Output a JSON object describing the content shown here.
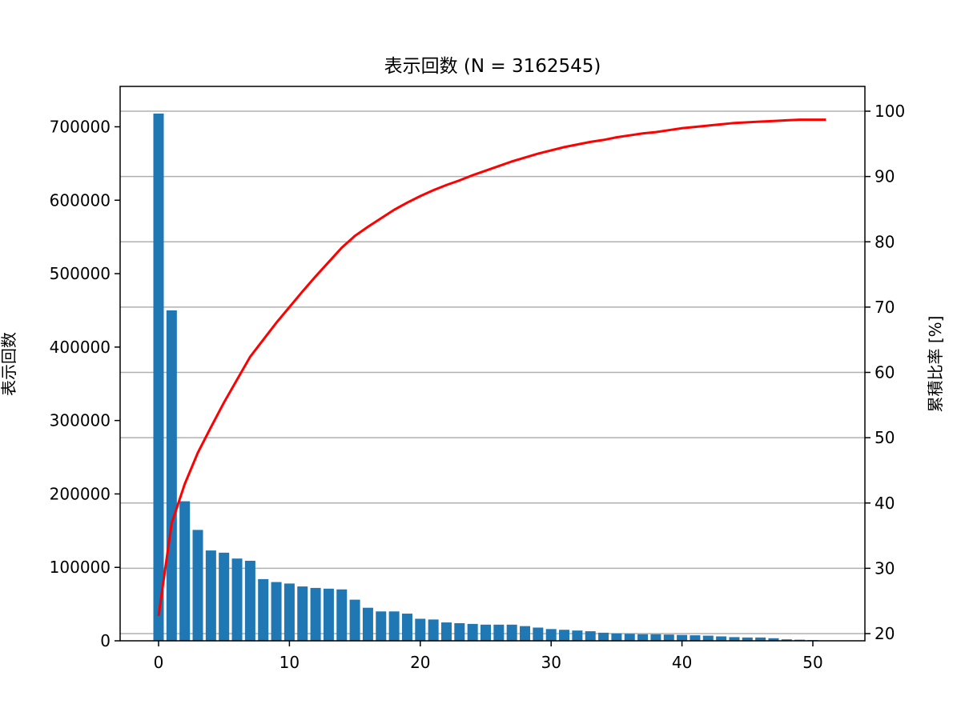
{
  "chart_data": {
    "type": "bar",
    "title": "表示回数 (N = 3162545)",
    "xlabel": "",
    "ylabel": "表示回数",
    "y2label": "累積比率 [%]",
    "xlim": [
      -3,
      54
    ],
    "ylim": [
      0,
      755000
    ],
    "y2lim": [
      18.6,
      103.9
    ],
    "x_ticks": [
      0,
      10,
      20,
      30,
      40,
      50
    ],
    "y_ticks": [
      0,
      100000,
      200000,
      300000,
      400000,
      500000,
      600000,
      700000
    ],
    "y2_ticks": [
      20,
      30,
      40,
      50,
      60,
      70,
      80,
      90,
      100
    ],
    "grid": "horizontal (right-axis ticks)",
    "bar_color": "#1f77b4",
    "line_color": "#ff0000",
    "categories": [
      0,
      1,
      2,
      3,
      4,
      5,
      6,
      7,
      8,
      9,
      10,
      11,
      12,
      13,
      14,
      15,
      16,
      17,
      18,
      19,
      20,
      21,
      22,
      23,
      24,
      25,
      26,
      27,
      28,
      29,
      30,
      31,
      32,
      33,
      34,
      35,
      36,
      37,
      38,
      39,
      40,
      41,
      42,
      43,
      44,
      45,
      46,
      47,
      48,
      49,
      50,
      51
    ],
    "series": [
      {
        "name": "表示回数",
        "axis": "left",
        "type": "bar",
        "values": [
          718000,
          450000,
          190000,
          151000,
          123000,
          120000,
          112000,
          109000,
          84000,
          80000,
          78000,
          74000,
          72000,
          71000,
          70000,
          56000,
          45000,
          40000,
          40000,
          37000,
          30000,
          29000,
          25000,
          24000,
          23000,
          22000,
          22000,
          22000,
          20000,
          18000,
          16000,
          15000,
          14000,
          13000,
          11000,
          10000,
          9500,
          9000,
          9000,
          8500,
          8000,
          7500,
          7000,
          6000,
          5000,
          4500,
          4500,
          3500,
          2000,
          1500,
          1000,
          300
        ]
      },
      {
        "name": "累積比率",
        "axis": "right",
        "type": "line",
        "values": [
          22.7,
          36.9,
          42.9,
          47.7,
          51.6,
          55.4,
          58.9,
          62.4,
          65.0,
          67.6,
          70.0,
          72.4,
          74.7,
          76.9,
          79.1,
          80.9,
          82.3,
          83.6,
          84.9,
          86.0,
          87.0,
          87.9,
          88.7,
          89.4,
          90.2,
          90.9,
          91.6,
          92.3,
          92.9,
          93.5,
          94.0,
          94.5,
          94.9,
          95.3,
          95.6,
          96.0,
          96.3,
          96.6,
          96.8,
          97.1,
          97.4,
          97.6,
          97.8,
          98.0,
          98.2,
          98.3,
          98.4,
          98.5,
          98.6,
          98.7,
          98.7,
          98.7
        ]
      }
    ]
  }
}
